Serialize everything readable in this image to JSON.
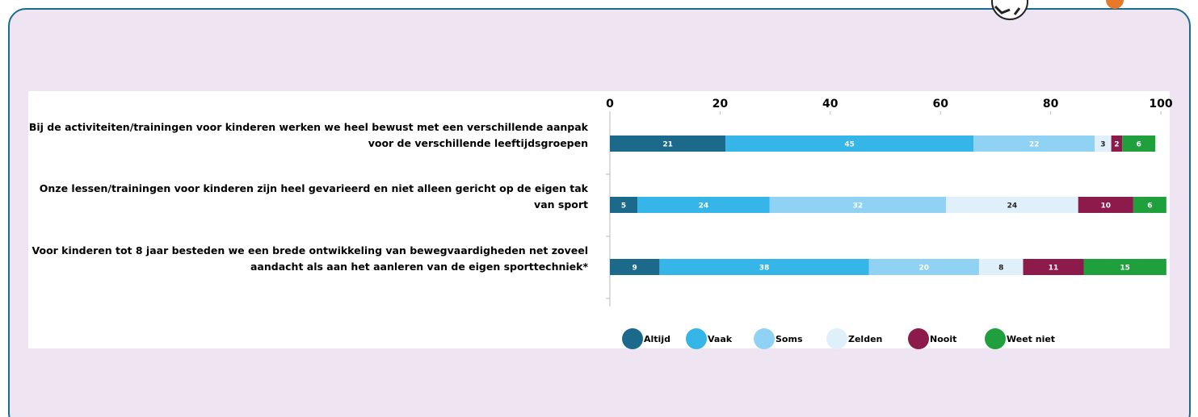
{
  "chart_data": {
    "type": "bar",
    "orientation": "horizontal",
    "stacked": true,
    "categories": [
      "Bij de activiteiten/trainingen voor kinderen werken we heel bewust met een verschillende aanpak voor de verschillende leeftijdsgroepen",
      "Onze lessen/trainingen voor kinderen zijn heel gevarieerd en niet alleen gericht op de eigen tak van sport",
      "Voor kinderen tot 8 jaar besteden we een brede ontwikkeling van bewegvaardigheden net zoveel aandacht als aan het aanleren van de eigen sporttechniek*"
    ],
    "series": [
      {
        "name": "Altijd",
        "color": "#1b6a8c",
        "values": [
          21,
          5,
          9
        ]
      },
      {
        "name": "Vaak",
        "color": "#36b5e8",
        "values": [
          45,
          24,
          38
        ]
      },
      {
        "name": "Soms",
        "color": "#8fd2f4",
        "values": [
          22,
          32,
          20
        ]
      },
      {
        "name": "Zelden",
        "color": "#e0f0fa",
        "values": [
          3,
          24,
          8
        ]
      },
      {
        "name": "Nooit",
        "color": "#8c1b4b",
        "values": [
          2,
          10,
          11
        ]
      },
      {
        "name": "Weet niet",
        "color": "#1fa03d",
        "values": [
          6,
          6,
          15
        ]
      }
    ],
    "xlim": [
      0,
      100
    ],
    "xticks": [
      0,
      20,
      40,
      60,
      80,
      100
    ],
    "legend": "bottom"
  }
}
